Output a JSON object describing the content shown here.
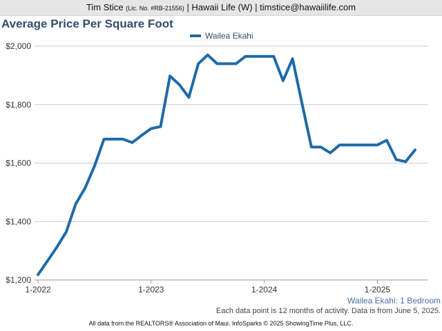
{
  "header": {
    "name": "Tim Stice",
    "license": "(Lic. No. #RB-21556)",
    "rest": "| Hawaii Life (W) | timstice@hawaiilife.com"
  },
  "subtitle": "Wailea Ekahi: 1 Bedroom",
  "note": "Each data point is 12 months of activity. Data is from June 5, 2025.",
  "footer": "All data from the REALTORS® Association of Maui. InfoSparks © 2025 ShowingTime Plus, LLC.",
  "colors": {
    "series": "#1f6aa8",
    "title": "#2e4d6d",
    "grid": "#c8c8c8"
  },
  "chart_data": {
    "type": "line",
    "title": "Average Price Per Square Foot",
    "xlabel": "",
    "ylabel": "",
    "ylim": [
      1200,
      2000
    ],
    "y_ticks": [
      1200,
      1400,
      1600,
      1800,
      2000
    ],
    "y_tick_labels": [
      "$1,200",
      "$1,400",
      "$1,600",
      "$1,800",
      "$2,000"
    ],
    "x_ticks": [
      "2022-01",
      "2023-01",
      "2024-01",
      "2025-01"
    ],
    "x_tick_labels": [
      "1-2022",
      "1-2023",
      "1-2024",
      "1-2025"
    ],
    "grid": true,
    "legend": "top-center",
    "series": [
      {
        "name": "Wailea Ekahi",
        "x": [
          "2022-01",
          "2022-02",
          "2022-03",
          "2022-04",
          "2022-05",
          "2022-06",
          "2022-07",
          "2022-08",
          "2022-09",
          "2022-10",
          "2022-11",
          "2022-12",
          "2023-01",
          "2023-02",
          "2023-03",
          "2023-04",
          "2023-05",
          "2023-06",
          "2023-07",
          "2023-08",
          "2023-09",
          "2023-10",
          "2023-11",
          "2023-12",
          "2024-01",
          "2024-02",
          "2024-03",
          "2024-04",
          "2024-05",
          "2024-06",
          "2024-07",
          "2024-08",
          "2024-09",
          "2024-10",
          "2024-11",
          "2024-12",
          "2025-01",
          "2025-02",
          "2025-03",
          "2025-04",
          "2025-05"
        ],
        "values": [
          1218,
          1265,
          1312,
          1365,
          1460,
          1515,
          1590,
          1682,
          1682,
          1682,
          1670,
          1695,
          1718,
          1725,
          1898,
          1868,
          1825,
          1940,
          1970,
          1940,
          1940,
          1940,
          1965,
          1965,
          1965,
          1965,
          1882,
          1957,
          1805,
          1655,
          1655,
          1635,
          1662,
          1662,
          1662,
          1662,
          1662,
          1678,
          1612,
          1605,
          1645
        ]
      }
    ]
  }
}
